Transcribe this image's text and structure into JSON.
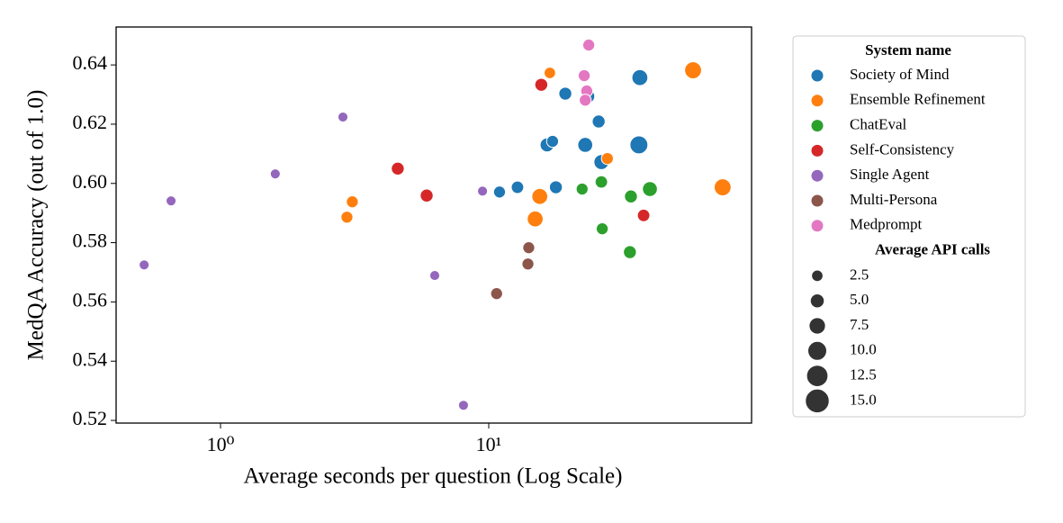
{
  "chart_data": {
    "type": "scatter",
    "xlabel": "Average seconds per question (Log Scale)",
    "ylabel": "MedQA Accuracy (out of 1.0)",
    "xscale": "log",
    "xlim": [
      0.408,
      95.5
    ],
    "ylim": [
      0.5191,
      0.6528
    ],
    "xticks": [
      {
        "value": 1,
        "label": "10⁰"
      },
      {
        "value": 10,
        "label": "10¹"
      }
    ],
    "yticks": [
      0.52,
      0.54,
      0.56,
      0.58,
      {
        "value": 0.6,
        "label": "0.60"
      },
      0.62,
      0.64
    ],
    "legend_title": "System name",
    "series": [
      {
        "name": "Society of Mind",
        "color": "#1f77b4",
        "x": [
          10.97,
          12.8,
          17.8,
          19.3,
          23.4,
          25.7,
          16.5,
          17.3,
          22.9,
          26.3,
          36.3,
          36.6
        ],
        "values": [
          0.5971,
          0.5987,
          0.5987,
          0.6303,
          0.6294,
          0.6209,
          0.613,
          0.6142,
          0.613,
          0.6072,
          0.613,
          0.6357
        ],
        "sizes": [
          3,
          3.5,
          4,
          4,
          5,
          4,
          5,
          3,
          6,
          6,
          9,
          7
        ]
      },
      {
        "name": "Ensemble Refinement",
        "color": "#ff7f0e",
        "x": [
          16.9,
          57.8,
          27.7,
          15.5,
          14.9,
          74.5,
          3.1,
          2.96
        ],
        "values": [
          0.6373,
          0.6382,
          0.6084,
          0.5956,
          0.588,
          0.5987,
          0.5938,
          0.5886
        ],
        "sizes": [
          2.5,
          8,
          3,
          7,
          7,
          8,
          3,
          3
        ]
      },
      {
        "name": "ChatEval",
        "color": "#2ca02c",
        "x": [
          22.3,
          26.3,
          33.9,
          39.9,
          26.5,
          33.6
        ],
        "values": [
          0.5981,
          0.6005,
          0.5956,
          0.5981,
          0.5847,
          0.5768
        ],
        "sizes": [
          3,
          3.5,
          4,
          6,
          3,
          4
        ]
      },
      {
        "name": "Self-Consistency",
        "color": "#d62728",
        "x": [
          15.7,
          4.58,
          5.87,
          37.8
        ],
        "values": [
          0.6333,
          0.605,
          0.5959,
          0.5892
        ],
        "sizes": [
          4,
          4,
          4,
          3.5
        ]
      },
      {
        "name": "Single Agent",
        "color": "#9467bd",
        "x": [
          0.519,
          0.654,
          1.6,
          2.86,
          6.29,
          9.48,
          8.05
        ],
        "values": [
          0.5725,
          0.5941,
          0.6032,
          0.6224,
          0.5689,
          0.5974,
          0.5251
        ],
        "sizes": [
          1,
          1,
          1,
          1,
          1,
          1,
          1
        ]
      },
      {
        "name": "Multi-Persona",
        "color": "#8c564b",
        "x": [
          14.1,
          14.0,
          10.7
        ],
        "values": [
          0.5783,
          0.5728,
          0.5628
        ],
        "sizes": [
          3,
          3,
          3
        ]
      },
      {
        "name": "Medprompt",
        "color": "#e377c2",
        "x": [
          23.6,
          22.7,
          23.2,
          22.9
        ],
        "values": [
          0.6467,
          0.6364,
          0.6312,
          0.6281
        ],
        "sizes": [
          3,
          3,
          3,
          3
        ]
      }
    ],
    "size_legend": {
      "title": "Average API calls",
      "color": "#333333",
      "values": [
        2.5,
        {
          "value": 5,
          "label": "5.0"
        },
        7.5,
        {
          "value": 10,
          "label": "10.0"
        },
        12.5,
        {
          "value": 15,
          "label": "15.0"
        }
      ]
    }
  }
}
